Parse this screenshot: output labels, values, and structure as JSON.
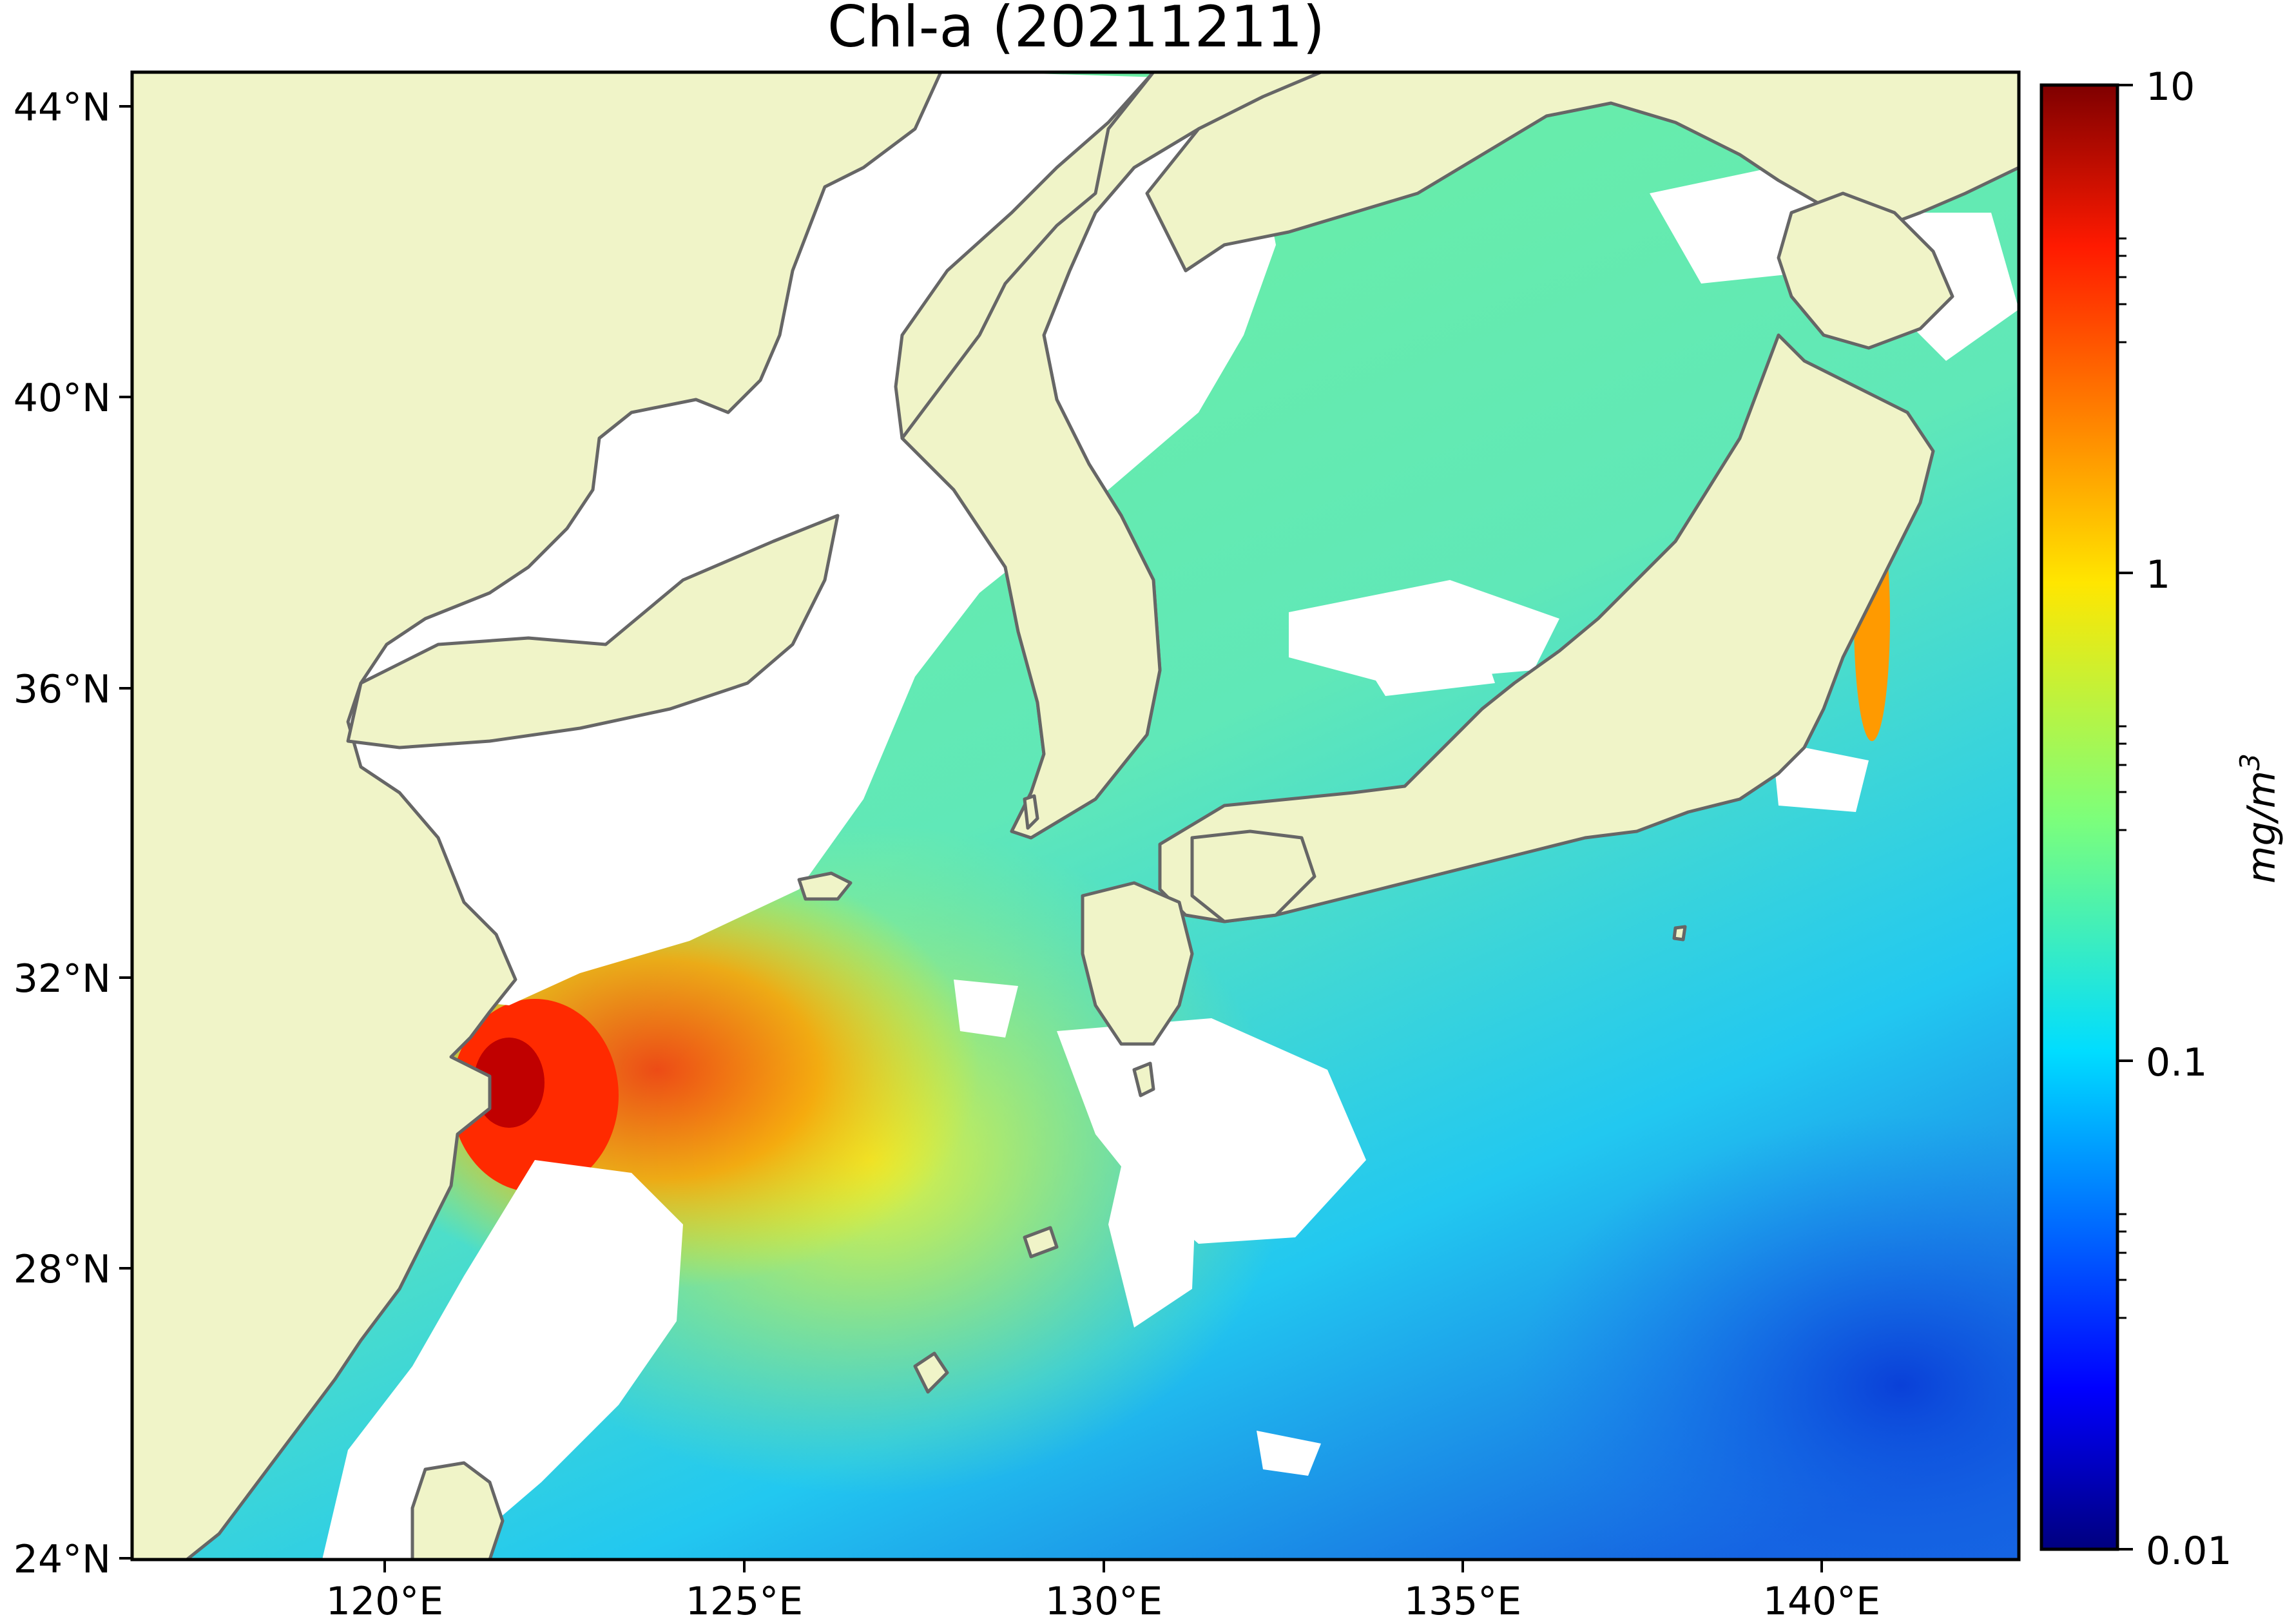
{
  "map": {
    "title": "Chl-a (20211211)",
    "lat_ticks": [
      "44°N",
      "40°N",
      "36°N",
      "32°N",
      "28°N",
      "24°N"
    ],
    "lon_ticks": [
      "120°E",
      "125°E",
      "130°E",
      "135°E",
      "140°E"
    ],
    "extent": {
      "lon_min": 116.7,
      "lon_max": 143.0,
      "lat_min": 24.0,
      "lat_max": 44.4
    },
    "colors": {
      "land": "#f0f4c8",
      "coast": "#666666",
      "no_data": "#ffffff"
    }
  },
  "colorbar": {
    "label": "mg/m",
    "label_exponent": "3",
    "scale": "log",
    "ticks": [
      "10",
      "1",
      "0.1",
      "0.01"
    ],
    "range": [
      0.01,
      10
    ],
    "colormap": "jet"
  }
}
